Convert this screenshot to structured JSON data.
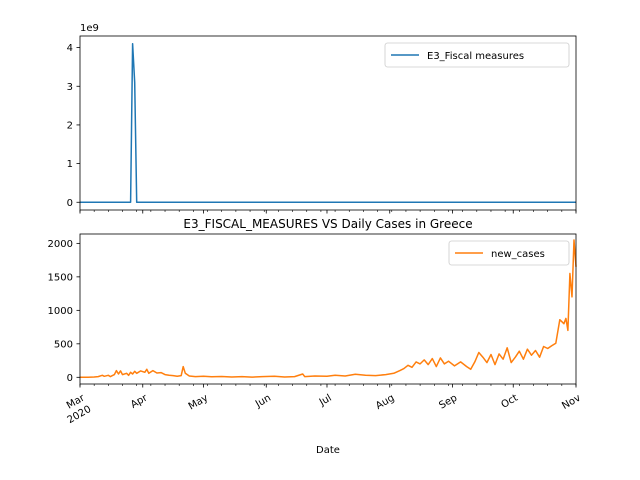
{
  "chart_data": [
    {
      "type": "line",
      "title": "",
      "xlabel": "",
      "ylabel": "",
      "offset_text": "1e9",
      "ylim": [
        -0.2,
        4.3
      ],
      "yticks": [
        0,
        1,
        2,
        3,
        4
      ],
      "xlim": [
        "2020-03-01",
        "2020-11-01"
      ],
      "legend_position": "upper right",
      "grid": false,
      "series": [
        {
          "name": "E3_Fiscal measures",
          "color": "#1f77b4",
          "points": [
            [
              "2020-03-01",
              0
            ],
            [
              "2020-03-26",
              0
            ],
            [
              "2020-03-27",
              4.1
            ],
            [
              "2020-03-28",
              3.1
            ],
            [
              "2020-03-29",
              0
            ],
            [
              "2020-11-01",
              0
            ]
          ]
        }
      ]
    },
    {
      "type": "line",
      "title": "E3_FISCAL_MEASURES VS Daily Cases in Greece",
      "xlabel": "Date",
      "ylabel": "",
      "ylim": [
        -100,
        2140
      ],
      "yticks": [
        0,
        500,
        1000,
        1500,
        2000
      ],
      "xlim": [
        "2020-03-01",
        "2020-11-01"
      ],
      "xtick_labels": [
        {
          "date": "2020-03-01",
          "label": "Mar",
          "sublabel": "2020"
        },
        {
          "date": "2020-04-01",
          "label": "Apr"
        },
        {
          "date": "2020-05-01",
          "label": "May"
        },
        {
          "date": "2020-06-01",
          "label": "Jun"
        },
        {
          "date": "2020-07-01",
          "label": "Jul"
        },
        {
          "date": "2020-08-01",
          "label": "Aug"
        },
        {
          "date": "2020-09-01",
          "label": "Sep"
        },
        {
          "date": "2020-10-01",
          "label": "Oct"
        },
        {
          "date": "2020-11-01",
          "label": "Nov"
        }
      ],
      "legend_position": "upper right",
      "grid": false,
      "series": [
        {
          "name": "new_cases",
          "color": "#ff7f0e",
          "points": [
            [
              "2020-03-01",
              0
            ],
            [
              "2020-03-05",
              2
            ],
            [
              "2020-03-08",
              5
            ],
            [
              "2020-03-10",
              10
            ],
            [
              "2020-03-12",
              30
            ],
            [
              "2020-03-13",
              15
            ],
            [
              "2020-03-15",
              30
            ],
            [
              "2020-03-16",
              10
            ],
            [
              "2020-03-18",
              40
            ],
            [
              "2020-03-19",
              100
            ],
            [
              "2020-03-20",
              50
            ],
            [
              "2020-03-21",
              95
            ],
            [
              "2020-03-22",
              40
            ],
            [
              "2020-03-24",
              60
            ],
            [
              "2020-03-25",
              30
            ],
            [
              "2020-03-26",
              75
            ],
            [
              "2020-03-27",
              50
            ],
            [
              "2020-03-28",
              90
            ],
            [
              "2020-03-29",
              60
            ],
            [
              "2020-03-31",
              95
            ],
            [
              "2020-04-02",
              75
            ],
            [
              "2020-04-03",
              120
            ],
            [
              "2020-04-04",
              60
            ],
            [
              "2020-04-06",
              100
            ],
            [
              "2020-04-08",
              65
            ],
            [
              "2020-04-10",
              70
            ],
            [
              "2020-04-12",
              40
            ],
            [
              "2020-04-14",
              30
            ],
            [
              "2020-04-16",
              25
            ],
            [
              "2020-04-18",
              15
            ],
            [
              "2020-04-20",
              25
            ],
            [
              "2020-04-21",
              160
            ],
            [
              "2020-04-22",
              60
            ],
            [
              "2020-04-24",
              20
            ],
            [
              "2020-04-27",
              10
            ],
            [
              "2020-05-01",
              15
            ],
            [
              "2020-05-05",
              8
            ],
            [
              "2020-05-10",
              12
            ],
            [
              "2020-05-15",
              5
            ],
            [
              "2020-05-20",
              10
            ],
            [
              "2020-05-25",
              3
            ],
            [
              "2020-05-30",
              10
            ],
            [
              "2020-06-05",
              15
            ],
            [
              "2020-06-10",
              5
            ],
            [
              "2020-06-15",
              10
            ],
            [
              "2020-06-19",
              50
            ],
            [
              "2020-06-20",
              10
            ],
            [
              "2020-06-25",
              20
            ],
            [
              "2020-07-01",
              15
            ],
            [
              "2020-07-05",
              30
            ],
            [
              "2020-07-10",
              20
            ],
            [
              "2020-07-15",
              45
            ],
            [
              "2020-07-20",
              30
            ],
            [
              "2020-07-25",
              25
            ],
            [
              "2020-07-30",
              40
            ],
            [
              "2020-08-03",
              60
            ],
            [
              "2020-08-06",
              100
            ],
            [
              "2020-08-08",
              130
            ],
            [
              "2020-08-10",
              180
            ],
            [
              "2020-08-12",
              150
            ],
            [
              "2020-08-14",
              230
            ],
            [
              "2020-08-16",
              200
            ],
            [
              "2020-08-18",
              260
            ],
            [
              "2020-08-20",
              190
            ],
            [
              "2020-08-22",
              280
            ],
            [
              "2020-08-24",
              160
            ],
            [
              "2020-08-26",
              290
            ],
            [
              "2020-08-28",
              200
            ],
            [
              "2020-08-30",
              240
            ],
            [
              "2020-09-02",
              170
            ],
            [
              "2020-09-05",
              230
            ],
            [
              "2020-09-08",
              160
            ],
            [
              "2020-09-10",
              120
            ],
            [
              "2020-09-12",
              230
            ],
            [
              "2020-09-14",
              370
            ],
            [
              "2020-09-16",
              300
            ],
            [
              "2020-09-18",
              220
            ],
            [
              "2020-09-20",
              340
            ],
            [
              "2020-09-22",
              190
            ],
            [
              "2020-09-24",
              350
            ],
            [
              "2020-09-26",
              270
            ],
            [
              "2020-09-28",
              440
            ],
            [
              "2020-09-30",
              220
            ],
            [
              "2020-10-02",
              300
            ],
            [
              "2020-10-04",
              390
            ],
            [
              "2020-10-06",
              270
            ],
            [
              "2020-10-08",
              420
            ],
            [
              "2020-10-10",
              330
            ],
            [
              "2020-10-12",
              400
            ],
            [
              "2020-10-14",
              300
            ],
            [
              "2020-10-16",
              460
            ],
            [
              "2020-10-18",
              430
            ],
            [
              "2020-10-20",
              470
            ],
            [
              "2020-10-22",
              510
            ],
            [
              "2020-10-24",
              860
            ],
            [
              "2020-10-26",
              800
            ],
            [
              "2020-10-27",
              880
            ],
            [
              "2020-10-28",
              700
            ],
            [
              "2020-10-29",
              1550
            ],
            [
              "2020-10-30",
              1200
            ],
            [
              "2020-10-31",
              2050
            ],
            [
              "2020-11-01",
              1650
            ]
          ]
        }
      ]
    }
  ]
}
